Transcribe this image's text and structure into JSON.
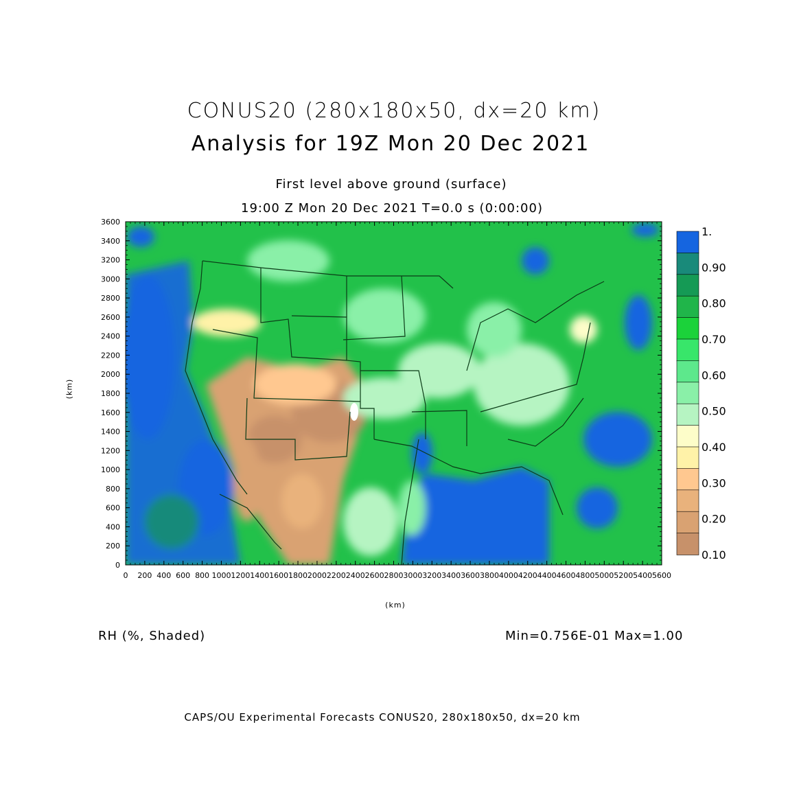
{
  "title": "CONUS20 (280x180x50, dx=20 km)",
  "subtitle": "Analysis for 19Z Mon 20 Dec 2021",
  "level": "First level above ground (surface)",
  "time_line": "19:00 Z Mon 20 Dec 2021   T=0.0 s (0:00:00)",
  "x_axis": {
    "unit": "(km)",
    "range": [
      0,
      5600
    ],
    "ticks": [
      "0",
      "200",
      "400",
      "600",
      "800",
      "1000",
      "1200",
      "1400",
      "1600",
      "1800",
      "2000",
      "2200",
      "2400",
      "2600",
      "2800",
      "3000",
      "3200",
      "3400",
      "3600",
      "3800",
      "4000",
      "4200",
      "4400",
      "4600",
      "4800",
      "5000",
      "5200",
      "5400",
      "5600"
    ]
  },
  "y_axis": {
    "unit": "(km)",
    "range": [
      0,
      3600
    ],
    "ticks": [
      "0",
      "200",
      "400",
      "600",
      "800",
      "1000",
      "1200",
      "1400",
      "1600",
      "1800",
      "2000",
      "2200",
      "2400",
      "2600",
      "2800",
      "3000",
      "3200",
      "3400",
      "3600"
    ]
  },
  "colorbar": {
    "labels": [
      "1.",
      "0.90",
      "0.80",
      "0.70",
      "0.60",
      "0.50",
      "0.40",
      "0.30",
      "0.20",
      "0.10"
    ],
    "colors": [
      "#1565e0",
      "#198a7a",
      "#159a55",
      "#20b54a",
      "#1bd23a",
      "#38e66a",
      "#5de88c",
      "#8af0a8",
      "#b6f4c2",
      "#fdfdc9",
      "#fff2a8",
      "#ffc890",
      "#e9b27c",
      "#d9a272",
      "#c7916a"
    ]
  },
  "variable": "RH (%, Shaded)",
  "minmax": "Min=0.756E-01  Max=1.00",
  "footer": "CAPS/OU Experimental Forecasts  CONUS20, 280x180x50, dx=20 km"
}
